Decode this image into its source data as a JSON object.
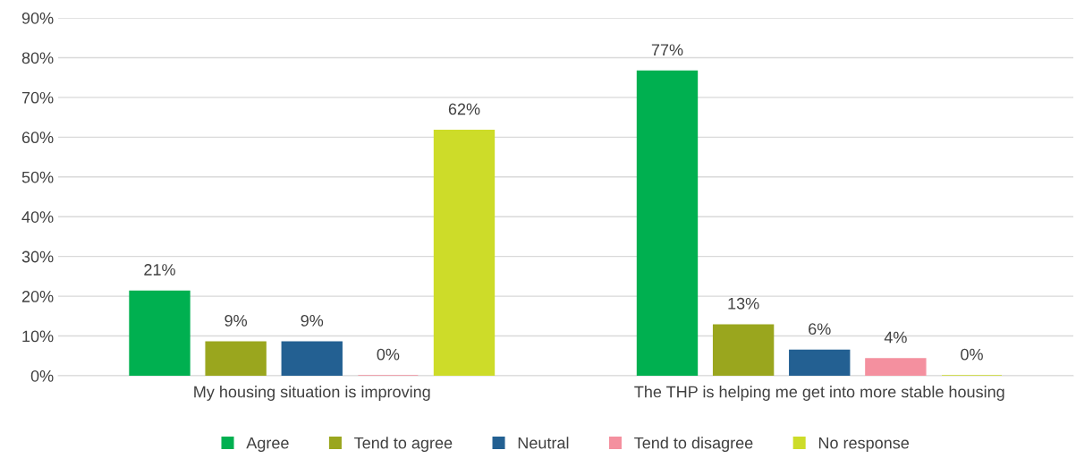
{
  "chart_data": {
    "type": "bar",
    "categories": [
      "My housing situation is improving",
      "The THP is helping me get into more stable housing"
    ],
    "series": [
      {
        "name": "Agree",
        "color": "#00b050",
        "values": [
          21.3,
          76.6
        ],
        "value_labels": [
          "21%",
          "77%"
        ]
      },
      {
        "name": "Tend to agree",
        "color": "#9aa61e",
        "values": [
          8.5,
          12.8
        ],
        "value_labels": [
          "9%",
          "13%"
        ]
      },
      {
        "name": "Neutral",
        "color": "#236092",
        "values": [
          8.5,
          6.4
        ],
        "value_labels": [
          "9%",
          "6%"
        ]
      },
      {
        "name": "Tend to disagree",
        "color": "#f4909f",
        "values": [
          0,
          4.3
        ],
        "value_labels": [
          "0%",
          "4%"
        ]
      },
      {
        "name": "No response",
        "color": "#cddc29",
        "values": [
          61.7,
          0
        ],
        "value_labels": [
          "62%",
          "0%"
        ]
      }
    ],
    "ylim": [
      0,
      90
    ],
    "yticks": [
      {
        "value": 0,
        "label": "0%"
      },
      {
        "value": 10,
        "label": "10%"
      },
      {
        "value": 20,
        "label": "20%"
      },
      {
        "value": 30,
        "label": "30%"
      },
      {
        "value": 40,
        "label": "40%"
      },
      {
        "value": 50,
        "label": "50%"
      },
      {
        "value": 60,
        "label": "60%"
      },
      {
        "value": 70,
        "label": "70%"
      },
      {
        "value": 80,
        "label": "80%"
      },
      {
        "value": 90,
        "label": "90%"
      }
    ],
    "grid": "y",
    "legend": "bottom"
  }
}
